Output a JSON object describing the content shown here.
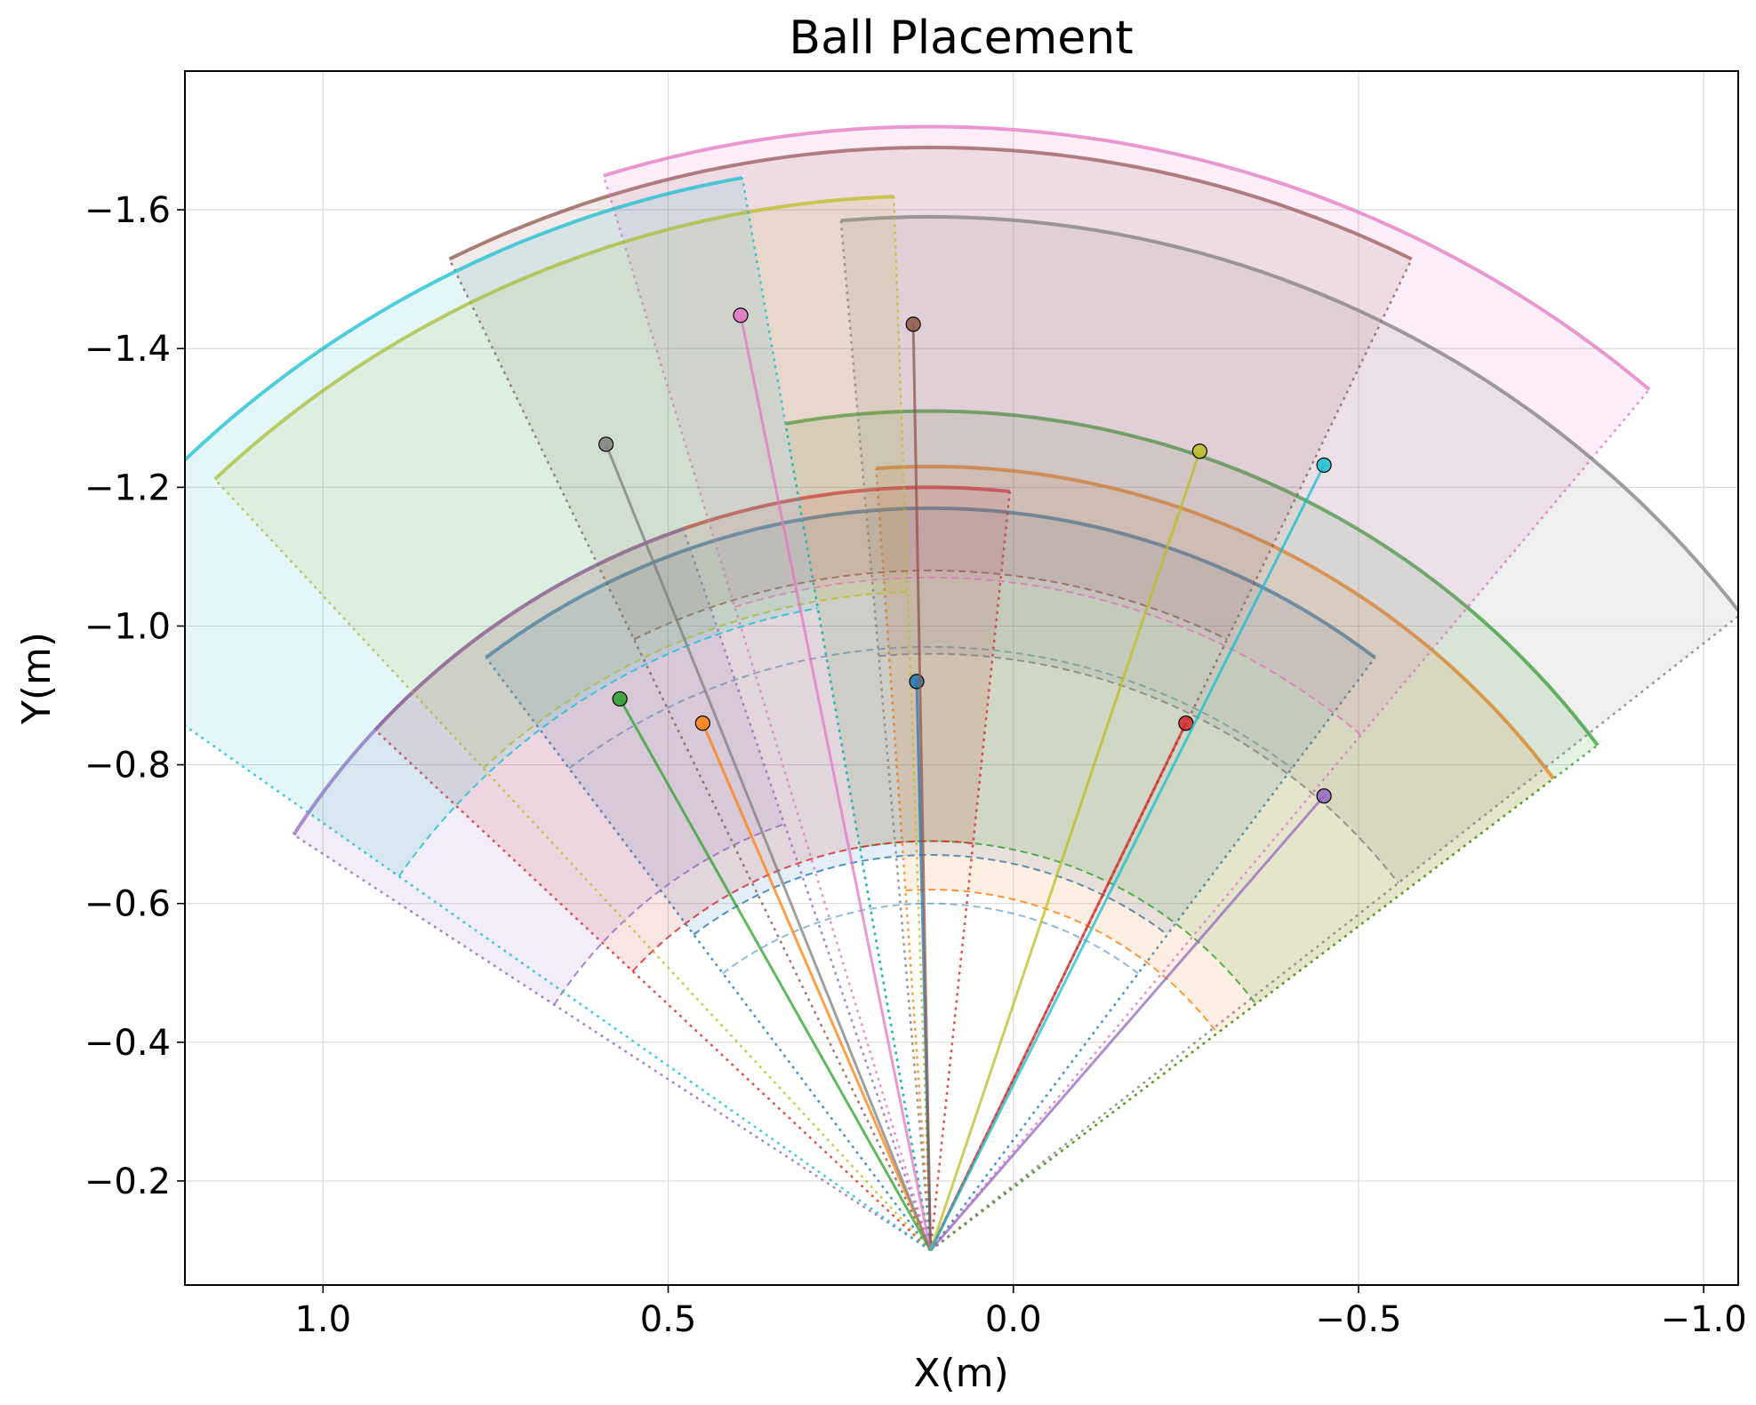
{
  "chart_data": {
    "type": "scatter",
    "title": "Ball Placement",
    "xlabel": "X(m)",
    "ylabel": "Y(m)",
    "xlim": [
      1.2,
      -1.05
    ],
    "ylim": [
      -0.05,
      -1.8
    ],
    "grid": true,
    "xticks": [
      1.0,
      0.5,
      0.0,
      -0.5,
      -1.0
    ],
    "xtick_labels": [
      "1.0",
      "0.5",
      "0.0",
      "−0.5",
      "−1.0"
    ],
    "yticks": [
      -0.2,
      -0.4,
      -0.6,
      -0.8,
      -1.0,
      -1.2,
      -1.4,
      -1.6
    ],
    "ytick_labels": [
      "−0.2",
      "−0.4",
      "−0.6",
      "−0.8",
      "−1.0",
      "−1.2",
      "−1.4",
      "−1.6"
    ],
    "origin": {
      "x": 0.12,
      "y": -0.1
    },
    "series": [
      {
        "name": "blue",
        "color": "#1f77b4",
        "ball": {
          "x": 0.14,
          "y": -0.92
        },
        "r_min": 0.57,
        "r_max": 1.07,
        "a_min": 53,
        "a_max": 127,
        "arc_extra": [
          0.5,
          0.87
        ]
      },
      {
        "name": "orange",
        "color": "#ff7f0e",
        "ball": {
          "x": 0.45,
          "y": -0.86
        },
        "r_min": 0.52,
        "r_max": 1.13,
        "a_min": 86,
        "a_max": 143,
        "arc_extra": []
      },
      {
        "name": "green",
        "color": "#2ca02c",
        "ball": {
          "x": 0.57,
          "y": -0.895
        },
        "r_min": 0.59,
        "r_max": 1.21,
        "a_min": 80,
        "a_max": 143,
        "arc_extra": []
      },
      {
        "name": "red",
        "color": "#d62728",
        "ball": {
          "x": -0.25,
          "y": -0.86
        },
        "r_min": 0.59,
        "r_max": 1.1,
        "a_min": 43,
        "a_max": 96,
        "arc_extra": []
      },
      {
        "name": "purple",
        "color": "#9467bd",
        "ball": {
          "x": -0.45,
          "y": -0.755
        },
        "r_min": 0.65,
        "r_max": 1.1,
        "a_min": 33,
        "a_max": 71,
        "arc_extra": []
      },
      {
        "name": "brown",
        "color": "#8c564b",
        "ball": {
          "x": 0.145,
          "y": -1.435
        },
        "r_min": 0.98,
        "r_max": 1.59,
        "a_min": 64,
        "a_max": 116,
        "arc_extra": []
      },
      {
        "name": "pink",
        "color": "#e377c2",
        "ball": {
          "x": 0.395,
          "y": -1.448
        },
        "r_min": 0.97,
        "r_max": 1.62,
        "a_min": 73,
        "a_max": 130,
        "arc_extra": []
      },
      {
        "name": "gray",
        "color": "#7f7f7f",
        "ball": {
          "x": 0.59,
          "y": -1.262
        },
        "r_min": 0.86,
        "r_max": 1.49,
        "a_min": 85,
        "a_max": 142,
        "arc_extra": []
      },
      {
        "name": "olive",
        "color": "#bcbd22",
        "ball": {
          "x": -0.27,
          "y": -1.252
        },
        "r_min": 0.95,
        "r_max": 1.52,
        "a_min": 47,
        "a_max": 88,
        "arc_extra": []
      },
      {
        "name": "cyan",
        "color": "#17becf",
        "ball": {
          "x": -0.45,
          "y": -1.232
        },
        "r_min": 0.94,
        "r_max": 1.57,
        "a_min": 35,
        "a_max": 80,
        "arc_extra": []
      }
    ]
  }
}
